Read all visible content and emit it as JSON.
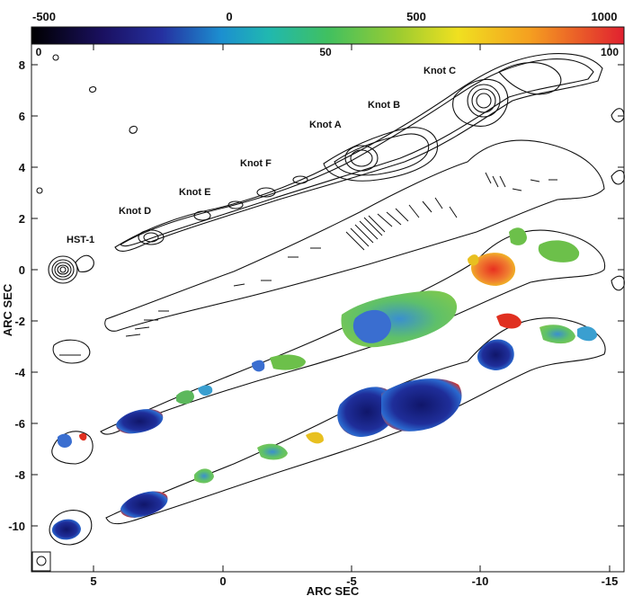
{
  "colorbar": {
    "top_ticks": [
      "-500",
      "0",
      "500",
      "1000"
    ],
    "bottom_ticks": [
      "0",
      "50",
      "100"
    ]
  },
  "axes": {
    "x_label": "ARC SEC",
    "y_label": "ARC SEC",
    "x_ticks": [
      "5",
      "0",
      "-5",
      "-10",
      "-15"
    ],
    "y_ticks": [
      "8",
      "6",
      "4",
      "2",
      "0",
      "-2",
      "-4",
      "-6",
      "-8",
      "-10"
    ]
  },
  "labels": {
    "hst1": "HST-1",
    "knot_d": "Knot D",
    "knot_e": "Knot E",
    "knot_f": "Knot F",
    "knot_a": "Knot A",
    "knot_b": "Knot B",
    "knot_c": "Knot C"
  },
  "colors": {
    "colorbar_stops": [
      "#000000",
      "#2b1f7a",
      "#2846b8",
      "#1aa5d8",
      "#38c07c",
      "#9acd32",
      "#f0e020",
      "#f5a020",
      "#e83020"
    ],
    "map_blue": "#1a2a8a",
    "map_green": "#6cc04a",
    "map_red": "#e03020"
  }
}
